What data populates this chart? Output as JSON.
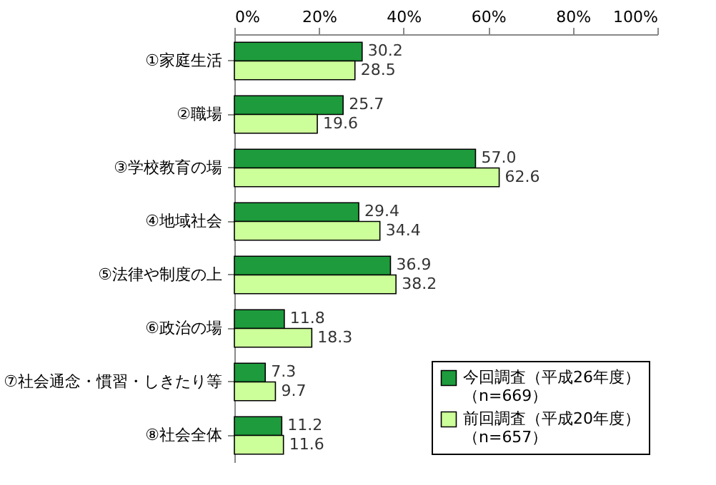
{
  "chart_data": {
    "type": "bar",
    "orientation": "horizontal",
    "categories": [
      "①家庭生活",
      "②職場",
      "③学校教育の場",
      "④地域社会",
      "⑤法律や制度の上",
      "⑥政治の場",
      "⑦社会通念・慣習・しきたり等",
      "⑧社会全体"
    ],
    "series": [
      {
        "name": "今回調査（平成26年度）（n=669）",
        "color": "#1e9b3c",
        "values": [
          30.2,
          25.7,
          57.0,
          29.4,
          36.9,
          11.8,
          7.3,
          11.2
        ],
        "value_labels": [
          "30.2",
          "25.7",
          "57.0",
          "29.4",
          "36.9",
          "11.8",
          "7.3",
          "11.2"
        ]
      },
      {
        "name": "前回調査（平成20年度）（n=657）",
        "color": "#ccff99",
        "values": [
          28.5,
          19.6,
          62.6,
          34.4,
          38.2,
          18.3,
          9.7,
          11.6
        ],
        "value_labels": [
          "28.5",
          "19.6",
          "62.6",
          "34.4",
          "38.2",
          "18.3",
          "9.7",
          "11.6"
        ]
      }
    ],
    "xlim": [
      0,
      100
    ],
    "xticks": [
      {
        "value": 0,
        "label": "0%"
      },
      {
        "value": 20,
        "label": "20%"
      },
      {
        "value": 40,
        "label": "40%"
      },
      {
        "value": 60,
        "label": "60%"
      },
      {
        "value": 80,
        "label": "80%"
      },
      {
        "value": 100,
        "label": "100%"
      }
    ],
    "grid": false,
    "legend": "bottom right"
  }
}
